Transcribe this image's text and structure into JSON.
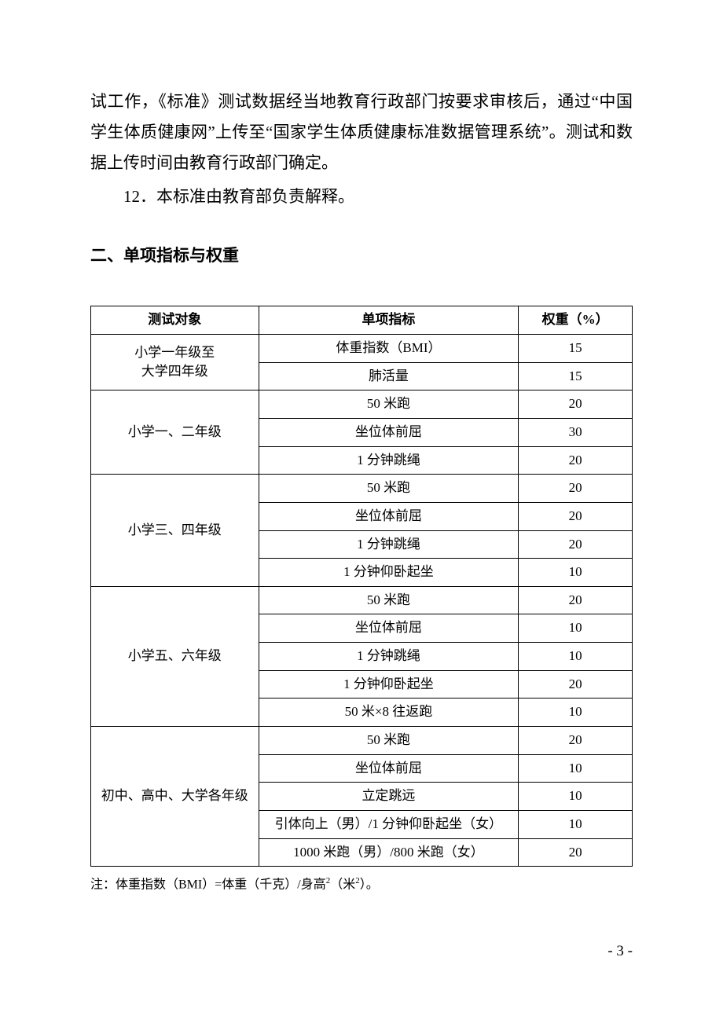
{
  "paragraphs": {
    "p1": "试工作，《标准》测试数据经当地教育行政部门按要求审核后，通过“中国学生体质健康网”上传至“国家学生体质健康标准数据管理系统”。测试和数据上传时间由教育行政部门确定。",
    "p2": "12．本标准由教育部负责解释。"
  },
  "section_heading": "二、单项指标与权重",
  "table": {
    "headers": {
      "subject": "测试对象",
      "indicator": "单项指标",
      "weight": "权重（%）"
    },
    "groups": [
      {
        "subject_lines": [
          "小学一年级至",
          "大学四年级"
        ],
        "rows": [
          {
            "indicator": "体重指数（BMI）",
            "weight": "15"
          },
          {
            "indicator": "肺活量",
            "weight": "15"
          }
        ]
      },
      {
        "subject_lines": [
          "小学一、二年级"
        ],
        "rows": [
          {
            "indicator": "50 米跑",
            "weight": "20"
          },
          {
            "indicator": "坐位体前屈",
            "weight": "30"
          },
          {
            "indicator": "1 分钟跳绳",
            "weight": "20"
          }
        ]
      },
      {
        "subject_lines": [
          "小学三、四年级"
        ],
        "rows": [
          {
            "indicator": "50 米跑",
            "weight": "20"
          },
          {
            "indicator": "坐位体前屈",
            "weight": "20"
          },
          {
            "indicator": "1 分钟跳绳",
            "weight": "20"
          },
          {
            "indicator": "1 分钟仰卧起坐",
            "weight": "10"
          }
        ]
      },
      {
        "subject_lines": [
          "小学五、六年级"
        ],
        "rows": [
          {
            "indicator": "50 米跑",
            "weight": "20"
          },
          {
            "indicator": "坐位体前屈",
            "weight": "10"
          },
          {
            "indicator": "1 分钟跳绳",
            "weight": "10"
          },
          {
            "indicator": "1 分钟仰卧起坐",
            "weight": "20"
          },
          {
            "indicator": "50 米×8 往返跑",
            "weight": "10"
          }
        ]
      },
      {
        "subject_lines": [
          "初中、高中、大学各年级"
        ],
        "rows": [
          {
            "indicator": "50 米跑",
            "weight": "20"
          },
          {
            "indicator": "坐位体前屈",
            "weight": "10"
          },
          {
            "indicator": "立定跳远",
            "weight": "10"
          },
          {
            "indicator": "引体向上（男）/1 分钟仰卧起坐（女）",
            "weight": "10"
          },
          {
            "indicator": "1000 米跑（男）/800 米跑（女）",
            "weight": "20"
          }
        ]
      }
    ]
  },
  "note_prefix": "注：体重指数（BMI）=体重（千克）/身高",
  "note_sup": "2",
  "note_mid": "（米",
  "note_sup2": "2",
  "note_suffix": "）。",
  "page_number": "- 3 -"
}
